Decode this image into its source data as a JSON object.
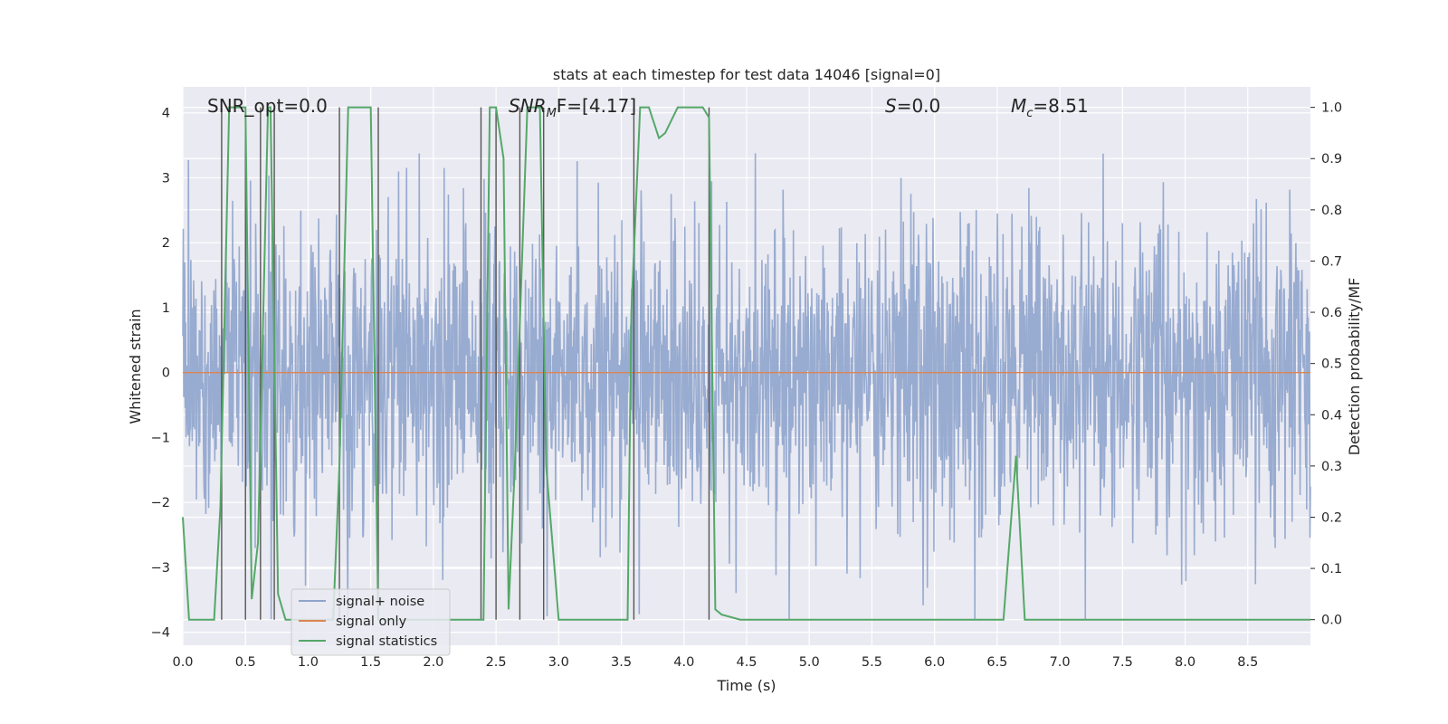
{
  "chart_data": {
    "type": "line",
    "title": "stats at each timestep for test data 14046 [signal=0]",
    "xlabel": "Time (s)",
    "ylabel_left": "Whitened strain",
    "ylabel_right": "Detection probability/MF",
    "xlim": [
      0.0,
      9.0
    ],
    "ylim_left": [
      -4.2,
      4.4
    ],
    "ylim_right": [
      -0.05,
      1.04
    ],
    "xticks": [
      "0.0",
      "0.5",
      "1.0",
      "1.5",
      "2.0",
      "2.5",
      "3.0",
      "3.5",
      "4.0",
      "4.5",
      "5.0",
      "5.5",
      "6.0",
      "6.5",
      "7.0",
      "7.5",
      "8.0",
      "8.5"
    ],
    "yticks_left": [
      "−4",
      "−3",
      "−2",
      "−1",
      "0",
      "1",
      "2",
      "3",
      "4"
    ],
    "yticks_right": [
      "0.0",
      "0.1",
      "0.2",
      "0.3",
      "0.4",
      "0.5",
      "0.6",
      "0.7",
      "0.8",
      "0.9",
      "1.0"
    ],
    "grid": true,
    "legend_position": "lower-left",
    "annotations": [
      {
        "text": "SNR_opt=0.0"
      },
      {
        "text": "SNR",
        "sub": "M",
        "suffix": "F=[4.17]"
      },
      {
        "text": "S",
        "suffix": "=0.0"
      },
      {
        "text": "M",
        "sub": "c",
        "suffix": "=8.51"
      }
    ],
    "series": [
      {
        "name": "signal+ noise",
        "color": "#8fa4cc",
        "kind": "noise",
        "envelope_abs_max": 3.8,
        "typical_abs": 1.5,
        "seed": 14046
      },
      {
        "name": "signal only",
        "color": "#dd8452",
        "kind": "flat",
        "value": 0.0
      },
      {
        "name": "signal statistics",
        "color": "#55a868",
        "kind": "line",
        "axis": "right",
        "x": [
          0.0,
          0.05,
          0.25,
          0.3,
          0.37,
          0.5,
          0.55,
          0.6,
          0.68,
          0.7,
          0.76,
          0.82,
          1.0,
          1.2,
          1.25,
          1.32,
          1.5,
          1.56,
          1.62,
          1.7,
          2.0,
          2.35,
          2.4,
          2.45,
          2.5,
          2.56,
          2.6,
          2.65,
          2.75,
          2.85,
          2.9,
          3.0,
          3.3,
          3.55,
          3.58,
          3.65,
          3.72,
          3.8,
          3.85,
          3.95,
          4.15,
          4.2,
          4.25,
          4.3,
          4.45,
          5.0,
          6.0,
          6.55,
          6.65,
          6.72,
          7.0,
          7.45,
          7.5,
          8.0,
          8.5,
          9.0
        ],
        "y": [
          0.2,
          0.0,
          0.0,
          0.22,
          1.0,
          1.0,
          0.04,
          0.15,
          1.0,
          1.0,
          0.05,
          0.0,
          0.0,
          0.0,
          0.3,
          1.0,
          1.0,
          0.0,
          0.0,
          0.0,
          0.0,
          0.0,
          0.0,
          1.0,
          1.0,
          0.9,
          0.02,
          0.3,
          1.0,
          1.0,
          0.3,
          0.0,
          0.0,
          0.0,
          0.6,
          1.0,
          1.0,
          0.94,
          0.95,
          1.0,
          1.0,
          0.98,
          0.02,
          0.01,
          0.0,
          0.0,
          0.0,
          0.0,
          0.32,
          0.0,
          0.0,
          0.0,
          0.0,
          0.0,
          0.0,
          0.0
        ]
      },
      {
        "name": "",
        "color": "#555555",
        "kind": "vlines",
        "axis": "right",
        "x": [
          0.31,
          0.5,
          0.62,
          0.73,
          1.25,
          1.56,
          2.38,
          2.5,
          2.69,
          2.88,
          3.6,
          4.2
        ],
        "y0": 0.0,
        "y1": 1.0
      }
    ]
  }
}
